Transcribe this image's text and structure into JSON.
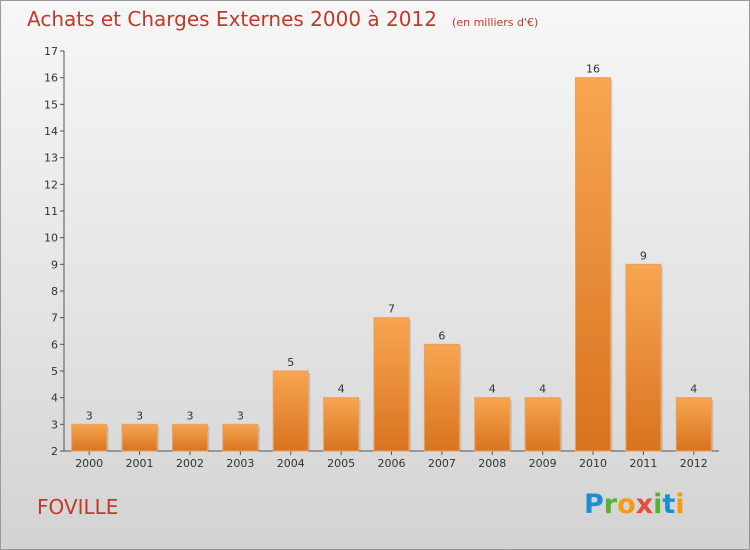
{
  "chart_data": {
    "type": "bar",
    "title": "Achats et Charges Externes 2000 à 2012",
    "unit_note": "(en milliers d'€)",
    "categories": [
      "2000",
      "2001",
      "2002",
      "2003",
      "2004",
      "2005",
      "2006",
      "2007",
      "2008",
      "2009",
      "2010",
      "2011",
      "2012"
    ],
    "values": [
      3,
      3,
      3,
      3,
      5,
      4,
      7,
      6,
      4,
      4,
      16,
      9,
      4
    ],
    "ylim": [
      2,
      17
    ],
    "yticks": [
      2,
      3,
      4,
      5,
      6,
      7,
      8,
      9,
      10,
      11,
      12,
      13,
      14,
      15,
      16,
      17
    ],
    "grid": false,
    "bar_color": "#f0923a"
  },
  "footer": {
    "town": "FOVILLE",
    "logo": "Proxiti"
  }
}
